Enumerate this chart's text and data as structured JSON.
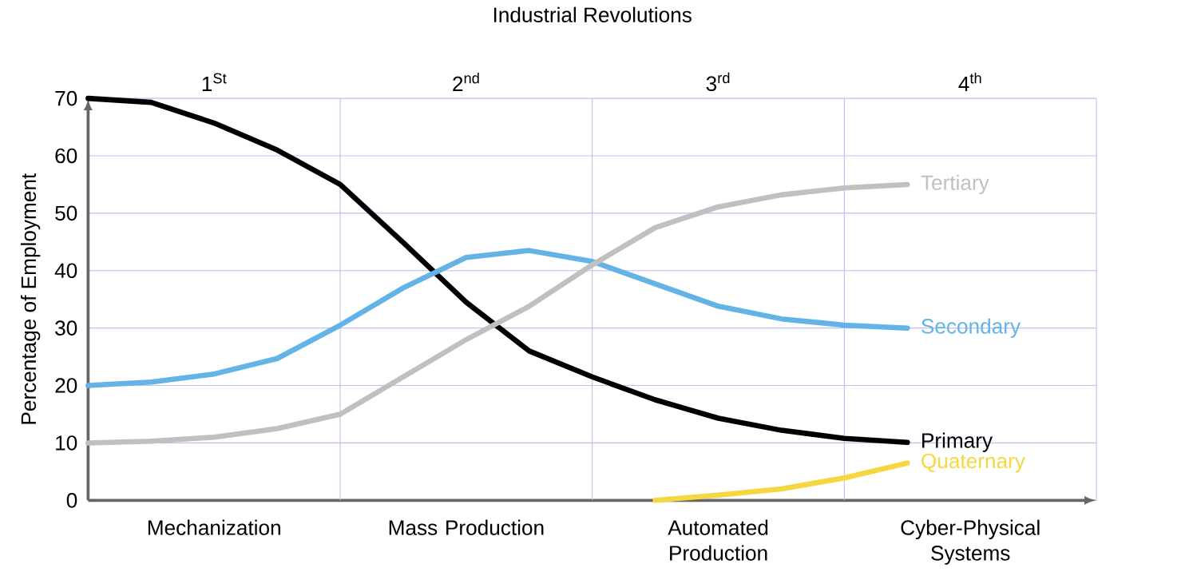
{
  "chart_data": {
    "type": "line",
    "title": "Industrial Revolutions",
    "ylabel": "Percentage of Employment",
    "categories": [
      null,
      null,
      "Mechanization",
      null,
      null,
      null,
      "Mass Production",
      null,
      null,
      null,
      "Automated Production",
      null,
      null,
      null,
      "Cyber-Physical Systems",
      null,
      null
    ],
    "annotations": [
      "1$^{St}$",
      "2$^{nd}$",
      "3$^{rd}$",
      "4$^{th}$"
    ],
    "ylim": [
      0,
      70
    ],
    "yticks": [
      0,
      10,
      20,
      30,
      40,
      50,
      60,
      70
    ],
    "grid": true,
    "legend": false,
    "marker": "none",
    "line_style": "solid",
    "series": [
      {
        "name": "Primary",
        "color": "#000000",
        "values": [
          70,
          69.3,
          65.7,
          61,
          55,
          44.9,
          34.5,
          26,
          21.5,
          17.5,
          14.3,
          12.2,
          10.8,
          10.1,
          null,
          null,
          null
        ]
      },
      {
        "name": "Secondary",
        "color": "#63b3e6",
        "values": [
          20,
          20.6,
          22,
          24.7,
          30.5,
          37,
          42.3,
          43.5,
          41.6,
          37.7,
          33.8,
          31.6,
          30.5,
          30,
          null,
          null,
          null
        ]
      },
      {
        "name": "Tertiary",
        "color": "#c0c0c0",
        "values": [
          10,
          10.3,
          11,
          12.5,
          15,
          21.5,
          28,
          33.8,
          41,
          47.5,
          51.1,
          53.2,
          54.4,
          55,
          null,
          null,
          null
        ]
      },
      {
        "name": "Quaternary",
        "color": "#f5d742",
        "values": [
          null,
          null,
          null,
          null,
          null,
          null,
          null,
          null,
          null,
          0,
          0.9,
          2,
          3.9,
          6.5,
          null,
          null,
          null
        ]
      }
    ]
  }
}
